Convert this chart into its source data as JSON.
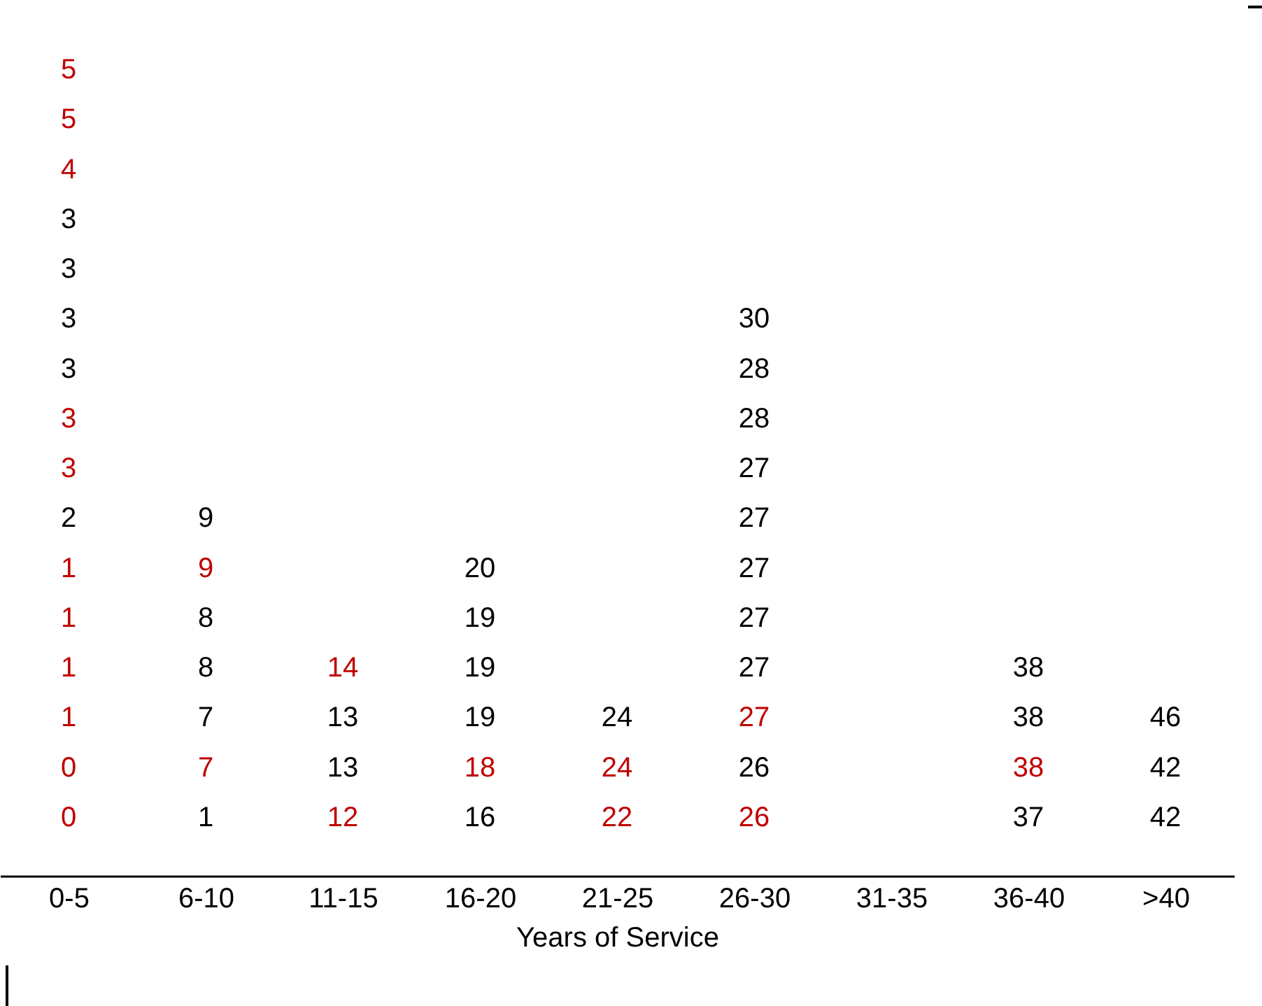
{
  "chart_data": {
    "type": "other",
    "xlabel": "Years of Service",
    "data_labels": true,
    "categories": [
      "0-5",
      "6-10",
      "11-15",
      "16-20",
      "21-25",
      "26-30",
      "31-35",
      "36-40",
      ">40"
    ],
    "series": [
      {
        "values": [
          0,
          1,
          12,
          16,
          22,
          26,
          null,
          37,
          42
        ],
        "colors": [
          "#c00000",
          "#000000",
          "#c00000",
          "#000000",
          "#c00000",
          "#c00000",
          null,
          "#000000",
          "#000000"
        ]
      },
      {
        "values": [
          0,
          7,
          13,
          18,
          24,
          26,
          null,
          38,
          42
        ],
        "colors": [
          "#c00000",
          "#c00000",
          "#000000",
          "#c00000",
          "#c00000",
          "#000000",
          null,
          "#c00000",
          "#000000"
        ]
      },
      {
        "values": [
          1,
          7,
          13,
          19,
          24,
          27,
          null,
          38,
          46
        ],
        "colors": [
          "#c00000",
          "#000000",
          "#000000",
          "#000000",
          "#000000",
          "#c00000",
          null,
          "#000000",
          "#000000"
        ]
      },
      {
        "values": [
          1,
          8,
          14,
          19,
          null,
          27,
          null,
          38,
          null
        ],
        "colors": [
          "#c00000",
          "#000000",
          "#c00000",
          "#000000",
          null,
          "#000000",
          null,
          "#000000",
          null
        ]
      },
      {
        "values": [
          1,
          8,
          null,
          19,
          null,
          27,
          null,
          null,
          null
        ],
        "colors": [
          "#c00000",
          "#000000",
          null,
          "#000000",
          null,
          "#000000",
          null,
          null,
          null
        ]
      },
      {
        "values": [
          1,
          9,
          null,
          20,
          null,
          27,
          null,
          null,
          null
        ],
        "colors": [
          "#c00000",
          "#c00000",
          null,
          "#000000",
          null,
          "#000000",
          null,
          null,
          null
        ]
      },
      {
        "values": [
          2,
          9,
          null,
          null,
          null,
          27,
          null,
          null,
          null
        ],
        "colors": [
          "#000000",
          "#000000",
          null,
          null,
          null,
          "#000000",
          null,
          null,
          null
        ]
      },
      {
        "values": [
          3,
          null,
          null,
          null,
          null,
          27,
          null,
          null,
          null
        ],
        "colors": [
          "#c00000",
          null,
          null,
          null,
          null,
          "#000000",
          null,
          null,
          null
        ]
      },
      {
        "values": [
          3,
          null,
          null,
          null,
          null,
          28,
          null,
          null,
          null
        ],
        "colors": [
          "#c00000",
          null,
          null,
          null,
          null,
          "#000000",
          null,
          null,
          null
        ]
      },
      {
        "values": [
          3,
          null,
          null,
          null,
          null,
          28,
          null,
          null,
          null
        ],
        "colors": [
          "#000000",
          null,
          null,
          null,
          null,
          "#000000",
          null,
          null,
          null
        ]
      },
      {
        "values": [
          3,
          null,
          null,
          null,
          null,
          30,
          null,
          null,
          null
        ],
        "colors": [
          "#000000",
          null,
          null,
          null,
          null,
          "#000000",
          null,
          null,
          null
        ]
      },
      {
        "values": [
          3,
          null,
          null,
          null,
          null,
          null,
          null,
          null,
          null
        ],
        "colors": [
          "#000000",
          null,
          null,
          null,
          null,
          null,
          null,
          null,
          null
        ]
      },
      {
        "values": [
          3,
          null,
          null,
          null,
          null,
          null,
          null,
          null,
          null
        ],
        "colors": [
          "#000000",
          null,
          null,
          null,
          null,
          null,
          null,
          null,
          null
        ]
      },
      {
        "values": [
          4,
          null,
          null,
          null,
          null,
          null,
          null,
          null,
          null
        ],
        "colors": [
          "#c00000",
          null,
          null,
          null,
          null,
          null,
          null,
          null,
          null
        ]
      },
      {
        "values": [
          5,
          null,
          null,
          null,
          null,
          null,
          null,
          null,
          null
        ],
        "colors": [
          "#c00000",
          null,
          null,
          null,
          null,
          null,
          null,
          null,
          null
        ]
      },
      {
        "values": [
          5,
          null,
          null,
          null,
          null,
          null,
          null,
          null,
          null
        ],
        "colors": [
          "#c00000",
          null,
          null,
          null,
          null,
          null,
          null,
          null,
          null
        ]
      }
    ]
  }
}
